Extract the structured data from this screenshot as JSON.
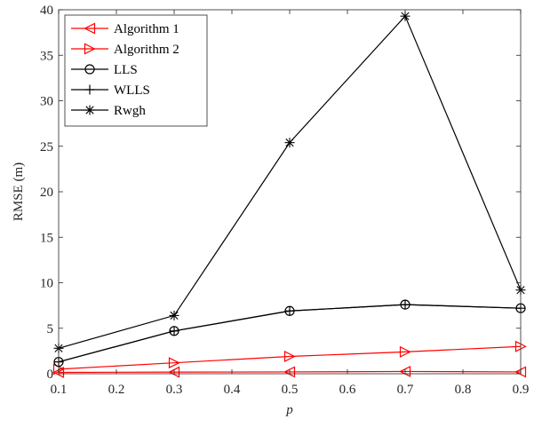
{
  "chart_data": {
    "type": "line",
    "title": "",
    "xlabel": "p",
    "ylabel": "RMSE (m)",
    "x": [
      0.1,
      0.3,
      0.5,
      0.7,
      0.9
    ],
    "xlim": [
      0.1,
      0.9
    ],
    "ylim": [
      0,
      40
    ],
    "xticks": [
      0.1,
      0.2,
      0.3,
      0.4,
      0.5,
      0.6,
      0.7,
      0.8,
      0.9
    ],
    "xtick_labels": [
      "0.1",
      "0.2",
      "0.3",
      "0.4",
      "0.5",
      "0.6",
      "0.7",
      "0.8",
      "0.9"
    ],
    "yticks": [
      0,
      5,
      10,
      15,
      20,
      25,
      30,
      35,
      40
    ],
    "ytick_labels": [
      "0",
      "5",
      "10",
      "15",
      "20",
      "25",
      "30",
      "35",
      "40"
    ],
    "grid": false,
    "legend_position": "top-left",
    "series": [
      {
        "name": "Algorithm 1",
        "values": [
          0.15,
          0.18,
          0.2,
          0.25,
          0.2
        ],
        "color": "#ff0000",
        "marker": "triangle-left"
      },
      {
        "name": "Algorithm 2",
        "values": [
          0.5,
          1.2,
          1.9,
          2.4,
          3.0
        ],
        "color": "#ff0000",
        "marker": "triangle-right"
      },
      {
        "name": "LLS",
        "values": [
          1.3,
          4.7,
          6.9,
          7.6,
          7.2
        ],
        "color": "#000000",
        "marker": "circle"
      },
      {
        "name": "WLLS",
        "values": [
          1.3,
          4.7,
          6.9,
          7.6,
          7.2
        ],
        "color": "#000000",
        "marker": "plus"
      },
      {
        "name": "Rwgh",
        "values": [
          2.8,
          6.4,
          25.4,
          39.3,
          9.2
        ],
        "color": "#000000",
        "marker": "asterisk"
      }
    ]
  }
}
